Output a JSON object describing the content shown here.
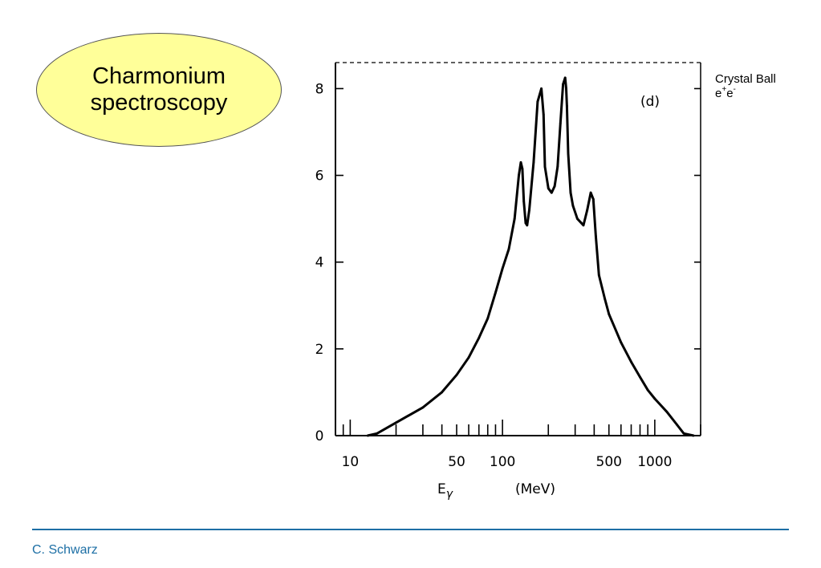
{
  "slide": {
    "title_line1": "Charmonium",
    "title_line2": "spectroscopy",
    "annotation_line1": "Crystal Ball",
    "annotation_base": "e",
    "annotation_sup1": "+",
    "annotation_mid": "e",
    "annotation_sup2": "-",
    "author": "C. Schwarz",
    "accent_color": "#1d6fa5",
    "ellipse_color": "#ffff99"
  },
  "chart_data": {
    "type": "line",
    "panel_label": "(d)",
    "xlabel_symbol": "E",
    "xlabel_subscript": "γ",
    "xlabel_unit": "(MeV)",
    "ylabel": "",
    "xscale": "log",
    "xlim": [
      8,
      2000
    ],
    "ylim": [
      0,
      8.6
    ],
    "x_tick_labels": [
      {
        "value": 10,
        "label": "10"
      },
      {
        "value": 50,
        "label": "50"
      },
      {
        "value": 100,
        "label": "100"
      },
      {
        "value": 500,
        "label": "500"
      },
      {
        "value": 1000,
        "label": "1000"
      }
    ],
    "x_minor_ticks": [
      8,
      9,
      10,
      20,
      30,
      40,
      50,
      60,
      70,
      80,
      90,
      100,
      200,
      300,
      400,
      500,
      600,
      700,
      800,
      900,
      1000,
      2000
    ],
    "y_ticks": [
      0,
      2,
      4,
      6,
      8
    ],
    "y_tick_labels": [
      "0",
      "2",
      "4",
      "6",
      "8"
    ],
    "grid": false,
    "series": [
      {
        "x": [
          13,
          15,
          20,
          30,
          40,
          50,
          60,
          70,
          80,
          90,
          100,
          110,
          120,
          128,
          132,
          135,
          138,
          142,
          145,
          150,
          160,
          170,
          180,
          186,
          190,
          200,
          210,
          220,
          230,
          240,
          250,
          258,
          262,
          265,
          270,
          280,
          290,
          310,
          340,
          360,
          380,
          395,
          410,
          430,
          470,
          500,
          600,
          700,
          800,
          900,
          1000,
          1200,
          1400,
          1550,
          1800
        ],
        "y": [
          0,
          0.05,
          0.3,
          0.65,
          1.0,
          1.4,
          1.8,
          2.25,
          2.7,
          3.3,
          3.85,
          4.3,
          5.0,
          6.0,
          6.3,
          6.15,
          5.4,
          4.9,
          4.85,
          5.2,
          6.3,
          7.7,
          8.0,
          7.4,
          6.2,
          5.7,
          5.6,
          5.75,
          6.2,
          7.2,
          8.1,
          8.25,
          8.0,
          7.6,
          6.5,
          5.6,
          5.3,
          5.0,
          4.85,
          5.2,
          5.6,
          5.45,
          4.6,
          3.7,
          3.15,
          2.8,
          2.15,
          1.7,
          1.35,
          1.05,
          0.85,
          0.55,
          0.25,
          0.05,
          0
        ]
      }
    ]
  }
}
